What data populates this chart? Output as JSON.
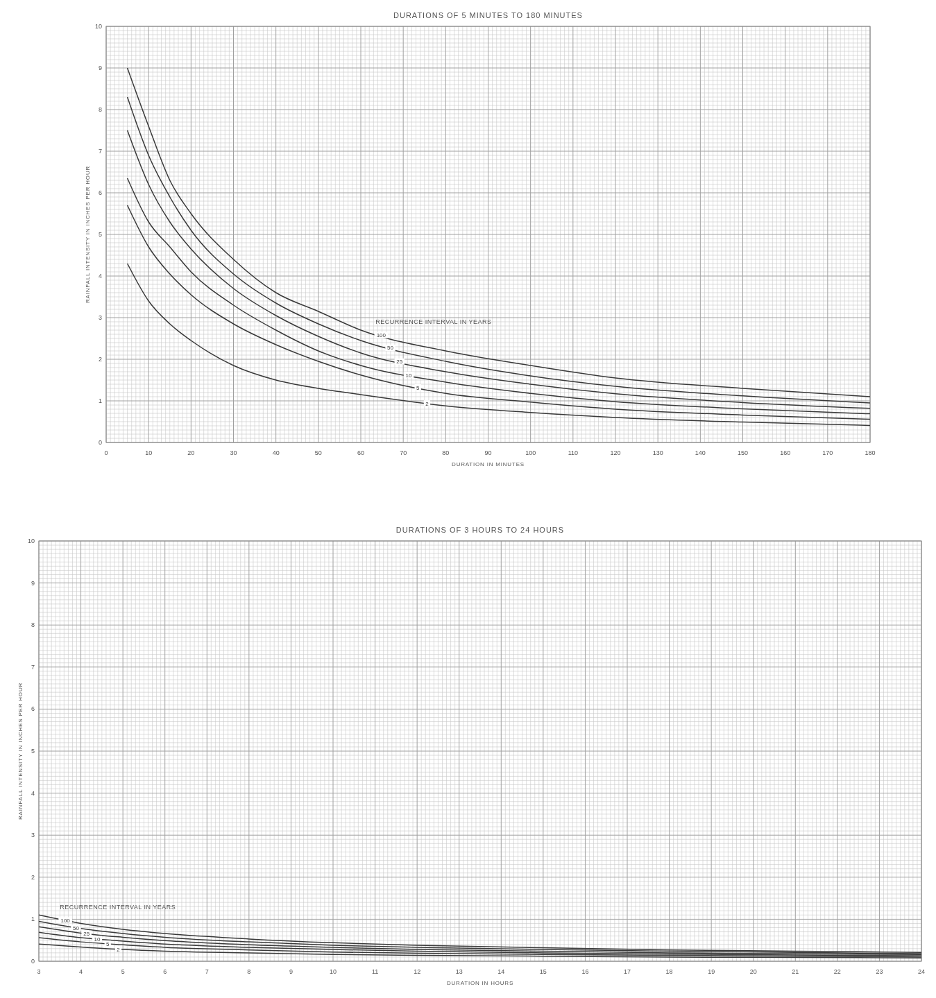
{
  "chart_data": [
    {
      "type": "line",
      "title": "DURATIONS OF 5 MINUTES TO 180 MINUTES",
      "xlabel": "DURATION IN MINUTES",
      "ylabel": "RAINFALL INTENSITY IN INCHES PER HOUR",
      "legend_title": "RECURRENCE INTERVAL IN YEARS",
      "x": [
        5,
        10,
        15,
        20,
        30,
        40,
        50,
        60,
        80,
        100,
        120,
        150,
        180
      ],
      "xlim": [
        0,
        180
      ],
      "xticks": [
        0,
        10,
        20,
        30,
        40,
        50,
        60,
        70,
        80,
        90,
        100,
        110,
        120,
        130,
        140,
        150,
        160,
        170,
        180
      ],
      "ylim": [
        0,
        10
      ],
      "yticks": [
        0,
        1,
        2,
        3,
        4,
        5,
        6,
        7,
        8,
        9,
        10
      ],
      "grid": true,
      "line_style": "solid",
      "series": [
        {
          "name": "100",
          "color": "#3a3a3a",
          "values": [
            9.0,
            7.6,
            6.3,
            5.5,
            4.4,
            3.6,
            3.15,
            2.7,
            2.2,
            1.85,
            1.55,
            1.3,
            1.1
          ]
        },
        {
          "name": "50",
          "color": "#3a3a3a",
          "values": [
            8.3,
            6.9,
            5.9,
            5.1,
            4.05,
            3.35,
            2.85,
            2.45,
            1.95,
            1.6,
            1.35,
            1.12,
            0.95
          ]
        },
        {
          "name": "25",
          "color": "#3a3a3a",
          "values": [
            7.5,
            6.2,
            5.3,
            4.65,
            3.7,
            3.05,
            2.55,
            2.15,
            1.7,
            1.4,
            1.17,
            0.96,
            0.82
          ]
        },
        {
          "name": "10",
          "color": "#3a3a3a",
          "values": [
            6.35,
            5.3,
            4.7,
            4.1,
            3.3,
            2.7,
            2.2,
            1.85,
            1.45,
            1.18,
            0.98,
            0.81,
            0.69
          ]
        },
        {
          "name": "5",
          "color": "#3a3a3a",
          "values": [
            5.7,
            4.7,
            4.05,
            3.55,
            2.85,
            2.35,
            1.95,
            1.62,
            1.18,
            0.97,
            0.8,
            0.66,
            0.56
          ]
        },
        {
          "name": "2",
          "color": "#3a3a3a",
          "values": [
            4.3,
            3.4,
            2.85,
            2.45,
            1.85,
            1.5,
            1.3,
            1.15,
            0.88,
            0.72,
            0.6,
            0.49,
            0.41
          ]
        }
      ]
    },
    {
      "type": "line",
      "title": "DURATIONS OF 3 HOURS TO 24 HOURS",
      "xlabel": "DURATION IN HOURS",
      "ylabel": "RAINFALL INTENSITY IN INCHES PER HOUR",
      "legend_title": "RECURRENCE INTERVAL IN YEARS",
      "x": [
        3,
        4,
        5,
        6,
        8,
        10,
        12,
        15,
        18,
        21,
        24
      ],
      "xlim": [
        3,
        24
      ],
      "xticks": [
        3,
        4,
        5,
        6,
        7,
        8,
        9,
        10,
        11,
        12,
        13,
        14,
        15,
        16,
        17,
        18,
        19,
        20,
        21,
        22,
        23,
        24
      ],
      "ylim": [
        0,
        10
      ],
      "yticks": [
        0,
        1,
        2,
        3,
        4,
        5,
        6,
        7,
        8,
        9,
        10
      ],
      "grid": true,
      "line_style": "solid",
      "series": [
        {
          "name": "100",
          "color": "#3a3a3a",
          "values": [
            1.1,
            0.9,
            0.76,
            0.66,
            0.53,
            0.44,
            0.38,
            0.32,
            0.27,
            0.24,
            0.21
          ]
        },
        {
          "name": "50",
          "color": "#3a3a3a",
          "values": [
            0.95,
            0.78,
            0.66,
            0.57,
            0.46,
            0.38,
            0.33,
            0.28,
            0.24,
            0.21,
            0.18
          ]
        },
        {
          "name": "25",
          "color": "#3a3a3a",
          "values": [
            0.82,
            0.67,
            0.57,
            0.49,
            0.39,
            0.33,
            0.28,
            0.24,
            0.2,
            0.18,
            0.16
          ]
        },
        {
          "name": "10",
          "color": "#3a3a3a",
          "values": [
            0.69,
            0.56,
            0.48,
            0.41,
            0.33,
            0.28,
            0.24,
            0.2,
            0.17,
            0.15,
            0.13
          ]
        },
        {
          "name": "5",
          "color": "#3a3a3a",
          "values": [
            0.56,
            0.46,
            0.39,
            0.33,
            0.27,
            0.22,
            0.19,
            0.16,
            0.14,
            0.12,
            0.1
          ]
        },
        {
          "name": "2",
          "color": "#3a3a3a",
          "values": [
            0.41,
            0.34,
            0.28,
            0.24,
            0.2,
            0.16,
            0.14,
            0.12,
            0.1,
            0.09,
            0.08
          ]
        }
      ]
    }
  ]
}
